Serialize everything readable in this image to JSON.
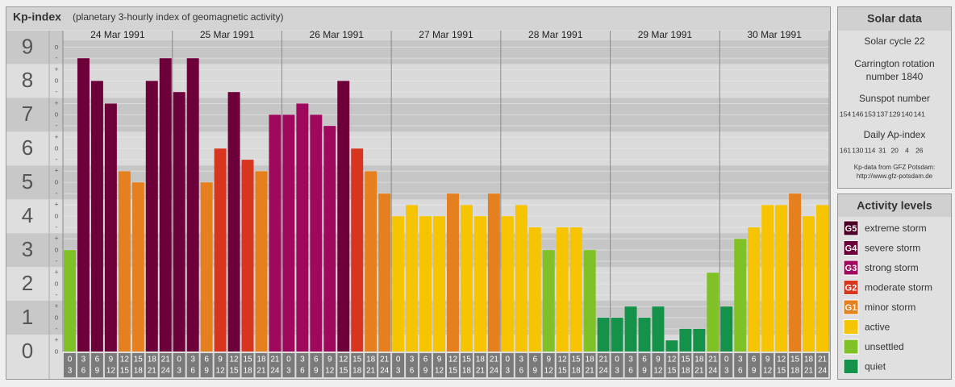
{
  "chart_data": {
    "type": "bar",
    "title": "Kp-index",
    "subtitle": "(planetary 3-hourly index of geomagnetic activity)",
    "days": [
      "24 Mar 1991",
      "25 Mar 1991",
      "26 Mar 1991",
      "27 Mar 1991",
      "28 Mar 1991",
      "29 Mar 1991",
      "30 Mar 1991"
    ],
    "hours": [
      [
        "0",
        "3"
      ],
      [
        "3",
        "6"
      ],
      [
        "6",
        "9"
      ],
      [
        "9",
        "12"
      ],
      [
        "12",
        "15"
      ],
      [
        "15",
        "18"
      ],
      [
        "18",
        "21"
      ],
      [
        "21",
        "24"
      ]
    ],
    "values": [
      3,
      8.67,
      8,
      7.33,
      5.33,
      5,
      8,
      8.67,
      7.67,
      8.67,
      5,
      6,
      7.67,
      5.67,
      5.33,
      7,
      7,
      7.33,
      7,
      6.67,
      8,
      6,
      5.33,
      4.67,
      4,
      4.33,
      4,
      4,
      4.67,
      4.33,
      4,
      4.67,
      4,
      4.33,
      3.67,
      3,
      3.67,
      3.67,
      3,
      1,
      1,
      1.33,
      1,
      1.33,
      0.33,
      0.67,
      0.67,
      2.33,
      1.33,
      3.33,
      3.67,
      4.33,
      4.33,
      4.67,
      4,
      4.33
    ],
    "colors": [
      "#80c226",
      "#6d0039",
      "#6d0039",
      "#6d0039",
      "#e6801e",
      "#e6801e",
      "#6d0039",
      "#6d0039",
      "#6d0039",
      "#6d0039",
      "#e6801e",
      "#d8351f",
      "#6d0039",
      "#d8351f",
      "#e6801e",
      "#a0085e",
      "#a0085e",
      "#a0085e",
      "#a0085e",
      "#a0085e",
      "#6d0039",
      "#d8351f",
      "#e6801e",
      "#e6801e",
      "#f6c400",
      "#f6c400",
      "#f6c400",
      "#f6c400",
      "#e6801e",
      "#f6c400",
      "#f6c400",
      "#e6801e",
      "#f6c400",
      "#f6c400",
      "#f6c400",
      "#80c226",
      "#f6c400",
      "#f6c400",
      "#80c226",
      "#14924a",
      "#14924a",
      "#14924a",
      "#14924a",
      "#14924a",
      "#14924a",
      "#14924a",
      "#14924a",
      "#80c226",
      "#14924a",
      "#80c226",
      "#f6c400",
      "#f6c400",
      "#f6c400",
      "#e6801e",
      "#f6c400",
      "#f6c400"
    ],
    "ylim": [
      0,
      9.2
    ],
    "yticks": [
      0,
      1,
      2,
      3,
      4,
      5,
      6,
      7,
      8,
      9
    ],
    "minor_yticks": [
      {
        "value": 0,
        "label": "o"
      },
      {
        "value": 0.33,
        "label": "+"
      },
      {
        "value": 0.67,
        "label": "-"
      },
      {
        "value": 1,
        "label": "o"
      },
      {
        "value": 1.33,
        "label": "+"
      },
      {
        "value": 1.67,
        "label": "-"
      },
      {
        "value": 2,
        "label": "o"
      },
      {
        "value": 2.33,
        "label": "+"
      },
      {
        "value": 2.67,
        "label": "-"
      },
      {
        "value": 3,
        "label": "o"
      },
      {
        "value": 3.33,
        "label": "+"
      },
      {
        "value": 3.67,
        "label": "-"
      },
      {
        "value": 4,
        "label": "o"
      },
      {
        "value": 4.33,
        "label": "+"
      },
      {
        "value": 4.67,
        "label": "-"
      },
      {
        "value": 5,
        "label": "o"
      },
      {
        "value": 5.33,
        "label": "+"
      },
      {
        "value": 5.67,
        "label": "-"
      },
      {
        "value": 6,
        "label": "o"
      },
      {
        "value": 6.33,
        "label": "+"
      },
      {
        "value": 6.67,
        "label": "-"
      },
      {
        "value": 7,
        "label": "o"
      },
      {
        "value": 7.33,
        "label": "+"
      },
      {
        "value": 7.67,
        "label": "-"
      },
      {
        "value": 8,
        "label": "o"
      },
      {
        "value": 8.33,
        "label": "+"
      },
      {
        "value": 8.67,
        "label": "-"
      },
      {
        "value": 9,
        "label": "o"
      }
    ],
    "grid": true,
    "legend_title": "Activity levels",
    "legend": [
      {
        "code": "G5",
        "name": "extreme storm",
        "color": "#4d0026"
      },
      {
        "code": "G4",
        "name": "severe storm",
        "color": "#6d0039"
      },
      {
        "code": "G3",
        "name": "strong storm",
        "color": "#a0085e"
      },
      {
        "code": "G2",
        "name": "moderate storm",
        "color": "#d8351f"
      },
      {
        "code": "G1",
        "name": "minor storm",
        "color": "#e6801e"
      },
      {
        "name": "active",
        "color": "#f6c400"
      },
      {
        "name": "unsettled",
        "color": "#80c226"
      },
      {
        "name": "quiet",
        "color": "#14924a"
      }
    ]
  },
  "solar_data": {
    "title": "Solar data",
    "solar_cycle": "Solar cycle 22",
    "carrington": [
      "Carrington rotation",
      "number 1840"
    ],
    "sunspot_title": "Sunspot number",
    "sunspot_numbers": [
      154,
      146,
      153,
      137,
      129,
      140,
      141
    ],
    "ap_title": "Daily Ap-index",
    "ap_index": [
      161,
      130,
      114,
      31,
      20,
      4,
      26
    ],
    "source": "Kp-data from GFZ Potsdam:",
    "url": "http://www.gfz-potsdam.de"
  }
}
